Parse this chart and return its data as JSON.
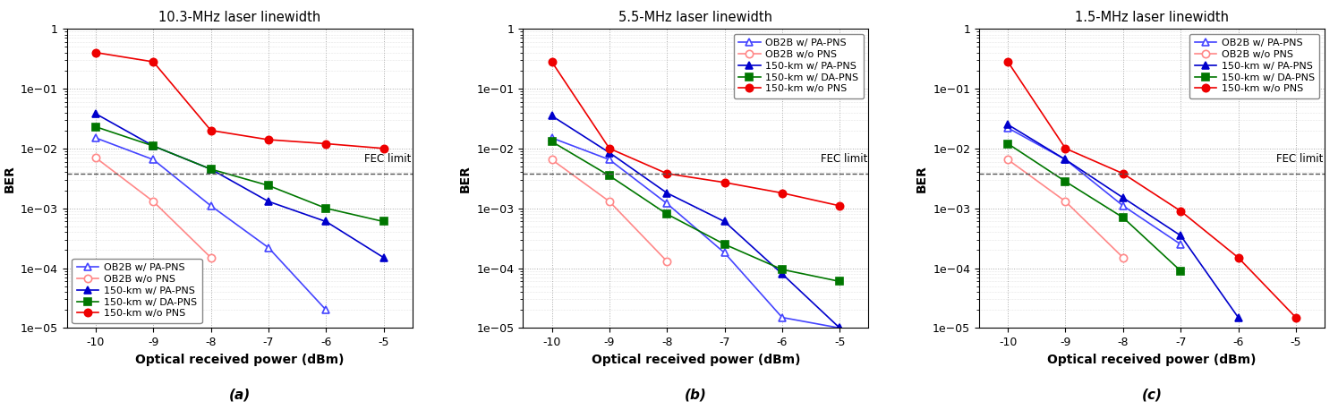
{
  "x": [
    -10,
    -9,
    -8,
    -7,
    -6,
    -5
  ],
  "titles": [
    "10.3-MHz laser linewidth",
    "5.5-MHz laser linewidth",
    "1.5-MHz laser linewidth"
  ],
  "subplot_labels": [
    "(a)",
    "(b)",
    "(c)"
  ],
  "xlabel": "Optical received power (dBm)",
  "ylabel": "BER",
  "fec_limit": 0.0038,
  "ylim": [
    1e-05,
    1.0
  ],
  "xlim": [
    -10.5,
    -4.5
  ],
  "series_a": {
    "ob2b_pa_pns": [
      0.015,
      0.0065,
      0.0011,
      0.00022,
      2e-05,
      null
    ],
    "ob2b_wo_pns": [
      0.007,
      0.0013,
      0.00015,
      null,
      null,
      null
    ],
    "km150_pa_pns": [
      0.038,
      0.011,
      0.0045,
      0.0013,
      0.0006,
      0.00015
    ],
    "km150_da_pns": [
      0.023,
      0.011,
      0.0045,
      0.0024,
      0.001,
      0.0006
    ],
    "km150_wo_pns": [
      0.4,
      0.28,
      0.02,
      0.014,
      0.012,
      0.01
    ]
  },
  "series_b": {
    "ob2b_pa_pns": [
      0.015,
      0.0065,
      0.0012,
      0.00018,
      1.5e-05,
      1e-05
    ],
    "ob2b_wo_pns": [
      0.0065,
      0.0013,
      0.00013,
      null,
      null,
      null
    ],
    "km150_pa_pns": [
      0.035,
      0.0085,
      0.0018,
      0.0006,
      8e-05,
      1e-05
    ],
    "km150_da_pns": [
      0.013,
      0.0035,
      0.0008,
      0.00025,
      9.5e-05,
      6e-05
    ],
    "km150_wo_pns": [
      0.28,
      0.01,
      0.0038,
      0.0027,
      0.0018,
      0.0011
    ]
  },
  "series_c": {
    "ob2b_pa_pns": [
      0.022,
      0.0065,
      0.0011,
      0.00025,
      null,
      null
    ],
    "ob2b_wo_pns": [
      0.0065,
      0.0013,
      0.00015,
      null,
      null,
      null
    ],
    "km150_pa_pns": [
      0.025,
      0.0065,
      0.0015,
      0.00035,
      1.5e-05,
      null
    ],
    "km150_da_pns": [
      0.012,
      0.0028,
      0.0007,
      9e-05,
      null,
      null
    ],
    "km150_wo_pns": [
      0.28,
      0.01,
      0.0038,
      0.0009,
      0.00015,
      1.5e-05
    ]
  },
  "legend_labels": [
    "OB2B w/ PA-PNS",
    "OB2B w/o PNS",
    "150-km w/ PA-PNS",
    "150-km w/ DA-PNS",
    "150-km w/o PNS"
  ],
  "colors": {
    "ob2b_pa_pns": "#4444FF",
    "ob2b_wo_pns": "#FF8888",
    "km150_pa_pns": "#0000CC",
    "km150_da_pns": "#007700",
    "km150_wo_pns": "#EE0000"
  },
  "fec_color": "#555555"
}
